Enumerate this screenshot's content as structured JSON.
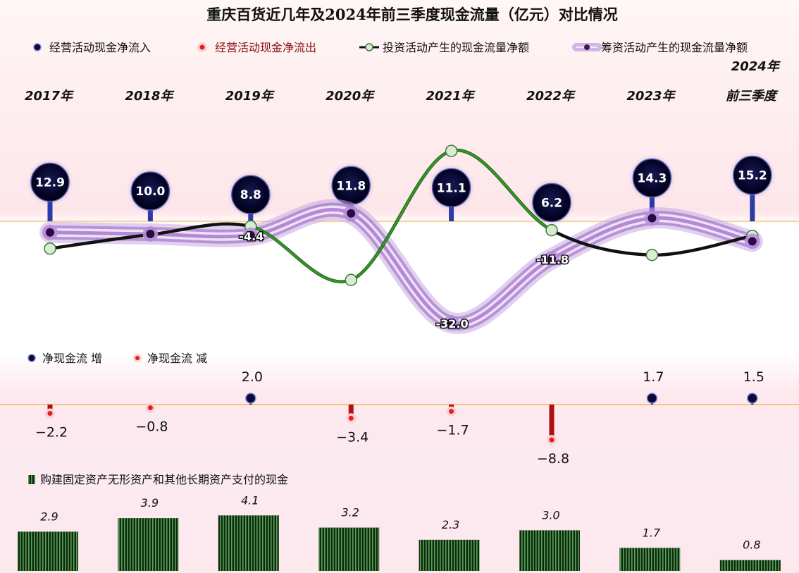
{
  "header": {
    "title": "重庆百货近几年及2024年前三季度现金流量（亿元）对比情况"
  },
  "legend": {
    "operating_in": "经营活动现金净流入",
    "operating_out": "经营活动现金净流出",
    "investing": "投资活动产生的现金流量净额",
    "financing": "筹资活动产生的现金流量净额",
    "net_increase": "净现金流  增",
    "net_decrease": "净现金流  减",
    "capex": "购建固定资产无形资产和其他长期资产支付的现金"
  },
  "colors": {
    "operating": "#0a0a3a",
    "investing": "#228b22",
    "financing": "#a070c8",
    "net_decrease": "#b01010",
    "bars": "#1a3a1a",
    "baseline": "#f0b040"
  },
  "chart_data": {
    "type": "line",
    "title": "重庆百货近几年及2024年前三季度现金流量（亿元）对比情况",
    "categories": [
      "2017年",
      "2018年",
      "2019年",
      "2020年",
      "2021年",
      "2022年",
      "2023年",
      "2024年|前三季度"
    ],
    "category_lines": [
      [
        "",
        "2017年"
      ],
      [
        "",
        "2018年"
      ],
      [
        "",
        "2019年"
      ],
      [
        "",
        "2020年"
      ],
      [
        "",
        "2021年"
      ],
      [
        "",
        "2022年"
      ],
      [
        "",
        "2023年"
      ],
      [
        "2024年",
        "前三季度"
      ]
    ],
    "operating_net_inflow": [
      12.9,
      10.0,
      8.8,
      11.8,
      11.1,
      6.2,
      14.3,
      15.2
    ],
    "operating_labels": [
      "12.9",
      "10.0",
      "8.8",
      "11.8",
      "11.1",
      "6.2",
      "14.3",
      "15.2"
    ],
    "series": [
      {
        "name": "投资活动产生的现金流量净额",
        "values": [
          -8.6,
          -4.2,
          -1.6,
          -18.5,
          22.2,
          -2.8,
          -10.6,
          -4.6
        ]
      },
      {
        "name": "筹资活动产生的现金流量净额",
        "values": [
          -3.5,
          -4.0,
          -4.4,
          2.5,
          -32.0,
          -11.8,
          1.0,
          -6.3
        ],
        "labels": [
          "",
          "",
          "-4.4",
          "",
          "-32.0",
          "-11.8",
          "",
          ""
        ]
      }
    ],
    "net_cash_flow": [
      -2.2,
      -0.8,
      2.0,
      -3.4,
      -1.7,
      -8.8,
      1.7,
      1.5
    ],
    "net_cash_flow_labels": [
      "−2.2",
      "−0.8",
      "2.0",
      "−3.4",
      "−1.7",
      "−8.8",
      "1.7",
      "1.5"
    ],
    "capex": [
      2.9,
      3.9,
      4.1,
      3.2,
      2.3,
      3.0,
      1.7,
      0.8
    ],
    "capex_labels": [
      "2.9",
      "3.9",
      "4.1",
      "3.2",
      "2.3",
      "3.0",
      "1.7",
      "0.8"
    ]
  }
}
